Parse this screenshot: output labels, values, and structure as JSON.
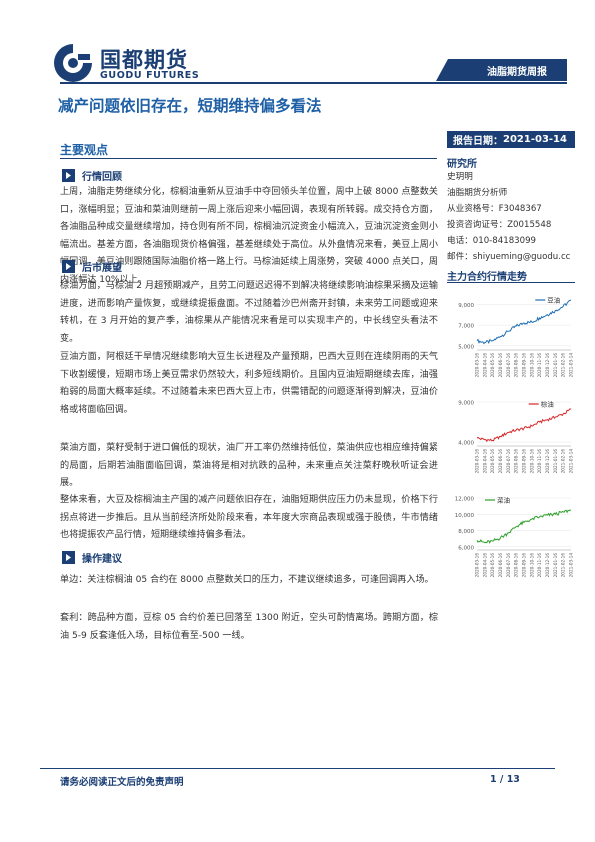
{
  "header": {
    "logo_cn": "国都期货",
    "logo_en": "GUODU FUTURES",
    "category": "油脂期货周报",
    "title": "减产问题依旧存在，短期维持偏多看法",
    "date_label": "报告日期",
    "date_value": "2021-03-14"
  },
  "main": {
    "section_title": "主要观点",
    "sections": [
      {
        "heading": "行情回顾",
        "paragraphs": [
          "上周，油脂走势继续分化，棕榈油重新从豆油手中夺回领头羊位置，周中上破 8000 点整数关口，涨幅明显；豆油和菜油则继前一周上涨后迎来小幅回调，表现有所转弱。成交持仓方面，各油脂品种成交量继续增加，持仓则有所不同，棕榈油沉淀资金小幅流入，豆油沉淀资金则小幅流出。基差方面，各油脂现货价格偏强，基差继续处于高位。从外盘情况来看，美豆上周小幅回调，美豆油则跟随国际油脂价格一路上行。马棕油延续上周涨势，突破 4000 点关口，周内涨幅达 10%以上。"
        ]
      },
      {
        "heading": "后市展望",
        "paragraphs": [
          "棕油方面，马棕油 2 月超预期减产，且劳工问题迟迟得不到解决将继续影响油棕果采摘及运输进度，进而影响产量恢复，或继续提振盘面。不过随着沙巴州斋开封镇，未来劳工问题或迎来转机，在 3 月开始的复产季，油棕果从产能情况来看是可以实现丰产的，中长线空头看法不变。",
          "豆油方面，阿根廷干旱情况继续影响大豆生长进程及产量预期，巴西大豆则在连续阴雨的天气下收割缓慢，短期市场上美豆需求仍然较大，利多短线期价。且国内豆油短期继续去库，油强粕弱的局面大概率延续。不过随着未来巴西大豆上市，供需错配的问题逐渐得到解决，豆油价格或将面临回调。",
          "菜油方面，菜籽受制于进口偏低的现状，油厂开工率仍然维持低位，菜油供应也相应维持偏紧的局面，后期若油脂面临回调，菜油将是相对抗跌的品种，未来重点关注菜籽晚秋听证会进展。",
          "整体来看，大豆及棕榈油主产国的减产问题依旧存在，油脂短期供应压力仍未显现，价格下行拐点将进一步推后。且从当前经济所处阶段来看，本年度大宗商品表现或强于股债，牛市情绪也将提振农产品行情，短期继续维持偏多看法。"
        ]
      },
      {
        "heading": "操作建议",
        "paragraphs": [
          "单边：关注棕榈油 05 合约在 8000 点整数关口的压力，不建议继续追多，可逢回调再入场。",
          "套利：跨品种方面，豆棕 05 合约价差已回落至 1300 附近，空头可酌情离场。跨期方面，棕油 5-9 反套逢低入场，目标位看至-500 一线。"
        ]
      }
    ]
  },
  "sidebar": {
    "heading": "研究所",
    "lines": [
      "史玥明",
      "油脂期货分析师",
      "从业资格号：F3048367",
      "投资咨询证号：Z0015548",
      "电话：010-84183099",
      "邮件：shiyueming@guodu.cc"
    ]
  },
  "charts_section": {
    "heading": "主力合约行情走势"
  },
  "chart_data": [
    {
      "type": "line",
      "series": [
        {
          "name": "豆油"
        }
      ],
      "yticks": [
        "9,000",
        "7,000",
        "5,000"
      ],
      "ylim": [
        4600,
        10000
      ],
      "x": [
        "2020-03-16",
        "2020-04-16",
        "2020-05-16",
        "2020-06-16",
        "2020-07-16",
        "2020-08-16",
        "2020-09-16",
        "2020-10-16",
        "2020-11-16",
        "2020-12-16",
        "2021-01-16",
        "2021-02-16",
        "2021-03-14"
      ],
      "values": [
        5500,
        5300,
        5500,
        5900,
        6400,
        6900,
        7200,
        7300,
        7700,
        8000,
        8400,
        8800,
        9400
      ],
      "color": "#1f6fb5"
    },
    {
      "type": "line",
      "series": [
        {
          "name": "棕油"
        }
      ],
      "yticks": [
        "9,000",
        "4,000"
      ],
      "ylim": [
        3500,
        9500
      ],
      "x": [
        "2020-03-16",
        "2020-04-16",
        "2020-05-16",
        "2020-06-16",
        "2020-07-16",
        "2020-08-16",
        "2020-09-16",
        "2020-10-16",
        "2020-11-16",
        "2020-12-16",
        "2021-01-16",
        "2021-02-16",
        "2021-03-14"
      ],
      "values": [
        4500,
        4300,
        4200,
        4700,
        5200,
        5500,
        5700,
        6000,
        6500,
        6800,
        7100,
        7500,
        8100
      ],
      "color": "#d62728"
    },
    {
      "type": "line",
      "series": [
        {
          "name": "菜油"
        }
      ],
      "yticks": [
        "12,000",
        "10,000",
        "8,000",
        "6,000"
      ],
      "ylim": [
        5600,
        12500
      ],
      "x": [
        "2020-03-16",
        "2020-04-16",
        "2020-05-16",
        "2020-06-16",
        "2020-07-16",
        "2020-08-16",
        "2020-09-16",
        "2020-10-16",
        "2020-11-16",
        "2020-12-16",
        "2021-01-16",
        "2021-02-16",
        "2021-03-14"
      ],
      "values": [
        6800,
        6500,
        6700,
        7100,
        7700,
        8500,
        9000,
        9400,
        9700,
        9900,
        10000,
        10300,
        10500
      ],
      "color": "#2ca02c"
    }
  ],
  "footer": {
    "disclaimer": "请务必阅读正文后的免责声明",
    "page": "1 / 13"
  },
  "colors": {
    "brand": "#1b3f74",
    "title": "#1f5fa6"
  }
}
